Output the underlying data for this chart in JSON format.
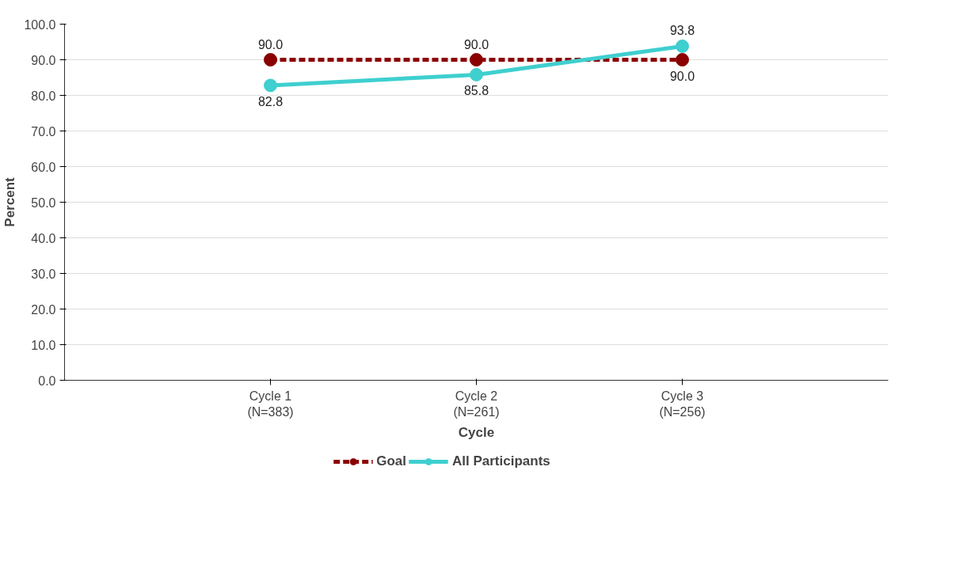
{
  "chart_data": {
    "type": "line",
    "xlabel": "Cycle",
    "ylabel": "Percent",
    "categories": [
      "Cycle 1\n(N=383)",
      "Cycle 2\n(N=261)",
      "Cycle 3\n(N=256)"
    ],
    "series": [
      {
        "name": "Goal",
        "color": "#8b0000",
        "values": [
          90.0,
          90.0,
          90.0
        ],
        "value_labels": [
          "90.0",
          "90.0",
          "90.0"
        ],
        "line_style": "dashed"
      },
      {
        "name": "All Participants",
        "color": "#3fcfcf",
        "values": [
          82.8,
          85.8,
          93.8
        ],
        "value_labels": [
          "82.8",
          "85.8",
          "93.8"
        ],
        "line_style": "solid"
      }
    ],
    "ylim": [
      0,
      100
    ],
    "yticks": [
      {
        "value": 0,
        "label": "0.0"
      },
      {
        "value": 10,
        "label": "10.0"
      },
      {
        "value": 20,
        "label": "20.0"
      },
      {
        "value": 30,
        "label": "30.0"
      },
      {
        "value": 40,
        "label": "40.0"
      },
      {
        "value": 50,
        "label": "50.0"
      },
      {
        "value": 60,
        "label": "60.0"
      },
      {
        "value": 70,
        "label": "70.0"
      },
      {
        "value": 80,
        "label": "80.0"
      },
      {
        "value": 90,
        "label": "90.0"
      },
      {
        "value": 100,
        "label": "100.0"
      }
    ],
    "grid": "y",
    "legend": "bottom",
    "marker": "circle"
  }
}
